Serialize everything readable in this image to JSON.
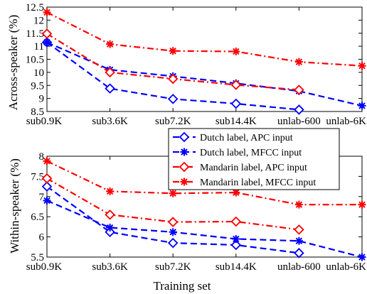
{
  "chart_data": [
    {
      "type": "line",
      "ylabel": "Across-speaker (%)",
      "xlabel": "",
      "categories": [
        "sub0.9K",
        "sub3.6K",
        "sub7.2K",
        "sub14.4K",
        "unlab-600",
        "unlab-6K"
      ],
      "ylim": [
        8.5,
        12.5
      ],
      "yticks": [
        "8.5",
        "9",
        "9.5",
        "10",
        "10.5",
        "11",
        "11.5",
        "12",
        "12.5"
      ],
      "series": [
        {
          "name": "Dutch label, APC input",
          "values": [
            11.15,
            9.38,
            8.98,
            8.8,
            8.57,
            null
          ],
          "color": "#0000ff",
          "marker": "diamond",
          "dash": "dashed"
        },
        {
          "name": "Dutch label, MFCC input",
          "values": [
            11.15,
            10.1,
            9.85,
            9.58,
            9.28,
            8.72
          ],
          "color": "#0000ff",
          "marker": "star",
          "dash": "dashed"
        },
        {
          "name": "Mandarin label, APC input",
          "values": [
            11.48,
            10.0,
            9.75,
            9.52,
            9.33,
            null
          ],
          "color": "#ff0000",
          "marker": "diamond",
          "dash": "dashdot"
        },
        {
          "name": "Mandarin label, MFCC input",
          "values": [
            12.3,
            11.08,
            10.82,
            10.8,
            10.4,
            10.25
          ],
          "color": "#ff0000",
          "marker": "star",
          "dash": "dashdot"
        }
      ]
    },
    {
      "type": "line",
      "ylabel": "Within-speaker (%)",
      "xlabel": "Training set",
      "categories": [
        "sub0.9K",
        "sub3.6K",
        "sub7.2K",
        "sub14.4K",
        "unlab-600",
        "unlab-6K"
      ],
      "ylim": [
        5.5,
        8
      ],
      "yticks": [
        "5.5",
        "6",
        "6.5",
        "7",
        "7.5",
        "8"
      ],
      "series": [
        {
          "name": "Dutch label, APC input",
          "values": [
            7.25,
            6.12,
            5.85,
            5.8,
            5.6,
            null
          ],
          "color": "#0000ff",
          "marker": "diamond",
          "dash": "dashed"
        },
        {
          "name": "Dutch label, MFCC input",
          "values": [
            6.9,
            6.23,
            6.12,
            5.95,
            5.9,
            5.5
          ],
          "color": "#0000ff",
          "marker": "star",
          "dash": "dashed"
        },
        {
          "name": "Mandarin label, APC input",
          "values": [
            7.45,
            6.55,
            6.37,
            6.38,
            6.18,
            null
          ],
          "color": "#ff0000",
          "marker": "diamond",
          "dash": "dashdot"
        },
        {
          "name": "Mandarin label, MFCC input",
          "values": [
            7.88,
            7.13,
            7.08,
            7.1,
            6.8,
            6.8
          ],
          "color": "#ff0000",
          "marker": "star",
          "dash": "dashdot"
        }
      ]
    }
  ],
  "legend": {
    "placement": "bottom-right of top panel",
    "entries": [
      "Dutch label, APC input",
      "Dutch label, MFCC input",
      "Mandarin label, APC input",
      "Mandarin label, MFCC input"
    ]
  }
}
